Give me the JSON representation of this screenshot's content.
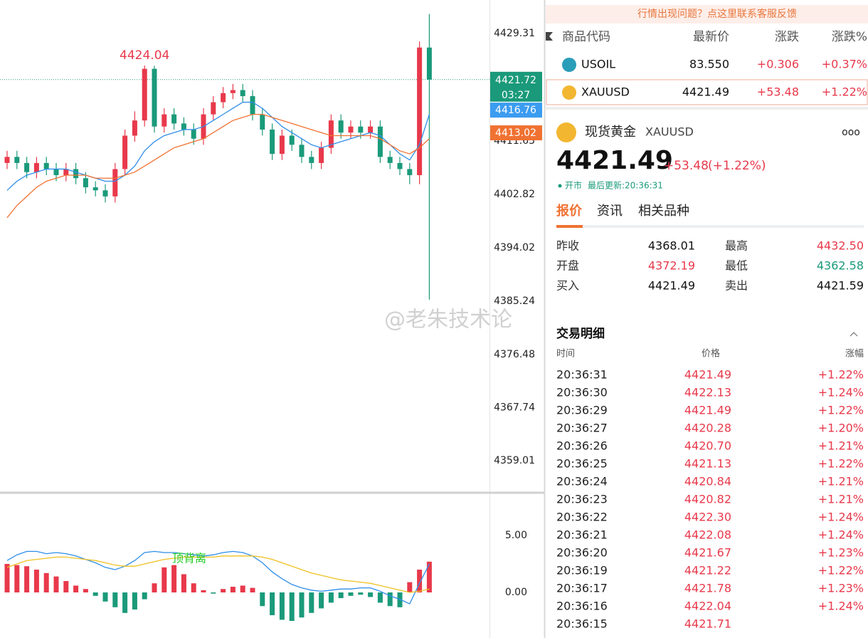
{
  "price_chart": {
    "type": "candlestick",
    "ylim": [
      4353.74,
      4434.82
    ],
    "yticks": [
      4429.31,
      4411.63,
      4402.82,
      4394.02,
      4385.24,
      4376.48,
      4367.74,
      4359.01
    ],
    "open": [
      4408,
      4409,
      4408,
      4406.5,
      4408,
      4407,
      4406,
      4407,
      4405.5,
      4404,
      4403.5,
      4402.5,
      4407,
      4412.5,
      4415,
      4423.5,
      4414,
      4416,
      4414.5,
      4413.5,
      4412,
      4416,
      4418,
      4419.5,
      4420,
      4419,
      4416,
      4413.5,
      4409.5,
      4412.5,
      4411,
      4409,
      4408,
      4410.5,
      4415,
      4413,
      4414,
      4413,
      4414,
      4409,
      4408,
      4407,
      4406,
      4427
    ],
    "high": [
      4410,
      4410,
      4409,
      4409,
      4409,
      4408,
      4408,
      4408,
      4406.5,
      4405,
      4404.5,
      4408,
      4413.5,
      4416.5,
      4424.04,
      4424,
      4417,
      4417,
      4415.5,
      4414.5,
      4417,
      4419,
      4420.5,
      4421,
      4421,
      4420,
      4417,
      4414.5,
      4413.5,
      4413.5,
      4412,
      4410,
      4411.5,
      4416,
      4416,
      4415,
      4415,
      4415,
      4415,
      4410,
      4409,
      4408,
      4428,
      4432.5
    ],
    "low": [
      4407,
      4407,
      4405.5,
      4405.5,
      4406,
      4405,
      4405,
      4404.5,
      4403,
      4402.5,
      4401.5,
      4401.5,
      4406,
      4411.5,
      4414,
      4413,
      4413,
      4413.5,
      4412.5,
      4411,
      4411,
      4415,
      4417,
      4418.5,
      4418,
      4415,
      4412.5,
      4408.5,
      4408.5,
      4410,
      4408,
      4407,
      4407,
      4409.5,
      4412,
      4412,
      4412,
      4412,
      4408,
      4407,
      4406,
      4404.5,
      4404.5,
      4385.5
    ],
    "close": [
      4409,
      4408,
      4406.5,
      4408,
      4407,
      4406,
      4407,
      4405.5,
      4404,
      4403.5,
      4402.5,
      4407,
      4412.5,
      4415,
      4423.5,
      4414,
      4416,
      4414.5,
      4413.5,
      4412,
      4416,
      4418,
      4419.5,
      4420,
      4419,
      4416,
      4413.5,
      4409.5,
      4412.5,
      4411,
      4409,
      4408,
      4410.5,
      4415,
      4413,
      4414,
      4413,
      4414,
      4409,
      4408,
      4407,
      4406,
      4427,
      4421.72
    ],
    "ma_fast": {
      "color": "#2f8ee8",
      "values": [
        4403.5,
        4405,
        4406,
        4406.5,
        4407,
        4407,
        4407,
        4406.5,
        4406,
        4405.5,
        4405,
        4405,
        4406,
        4407.5,
        4410,
        4411.5,
        4412.5,
        4413,
        4413.5,
        4413.5,
        4414,
        4415,
        4416,
        4417,
        4418,
        4418,
        4417,
        4415.5,
        4414,
        4413,
        4412,
        4411,
        4410.5,
        4411,
        4411.5,
        4412,
        4412.5,
        4413,
        4412.5,
        4411,
        4409.5,
        4408.5,
        4411,
        4416
      ]
    },
    "ma_slow": {
      "color": "#f07232",
      "values": [
        4399,
        4401,
        4402.5,
        4404,
        4405,
        4405.5,
        4406,
        4406,
        4406,
        4405.5,
        4405.5,
        4405.5,
        4406,
        4406.5,
        4407.5,
        4408.5,
        4409.5,
        4410.5,
        4411,
        4411.5,
        4412,
        4413,
        4414,
        4415,
        4415.5,
        4416,
        4416,
        4415.5,
        4415,
        4414.5,
        4414,
        4413.5,
        4413,
        4412.5,
        4412.5,
        4412.5,
        4412.5,
        4412.5,
        4412,
        4411,
        4410,
        4409.5,
        4410.5,
        4412
      ]
    },
    "up_color": "#e8394b",
    "down_color": "#1a9a7a",
    "high_annotation": {
      "index": 14,
      "label": "4424.04"
    },
    "price_tags": [
      {
        "value": 4421.72,
        "label": "4421.72",
        "timer": "03:27",
        "color": "#1a9a7a"
      },
      {
        "value": 4416.76,
        "label": "4416.76",
        "color": "#3b9cf0"
      },
      {
        "value": 4413.02,
        "label": "4413.02",
        "color": "#f07232"
      }
    ],
    "watermark": "@老朱技术论"
  },
  "macd_chart": {
    "type": "macd",
    "ylim": [
      -4,
      8.75
    ],
    "yticks": [
      {
        "value": 5,
        "label": "5.00"
      },
      {
        "value": 0,
        "label": "0.00"
      }
    ],
    "histogram": [
      2.5,
      2.4,
      2.3,
      2.0,
      1.7,
      1.4,
      1.0,
      0.6,
      0.3,
      -0.3,
      -0.8,
      -1.3,
      -1.8,
      -1.5,
      -0.6,
      0.8,
      2.2,
      2.4,
      1.6,
      0.8,
      0.2,
      -0.1,
      0.3,
      0.5,
      0.6,
      0.4,
      -1.2,
      -2.0,
      -2.4,
      -2.5,
      -2.2,
      -1.8,
      -1.4,
      -0.9,
      -0.5,
      -0.3,
      -0.2,
      -0.4,
      -0.9,
      -1.2,
      -1.3,
      0.9,
      2.0,
      2.7
    ],
    "dif": {
      "color": "#2f8ee8",
      "values": [
        2.8,
        3.3,
        3.6,
        3.6,
        3.4,
        3.5,
        3.4,
        3.2,
        2.9,
        2.6,
        2.2,
        2.0,
        2.3,
        2.8,
        3.5,
        3.6,
        3.5,
        3.5,
        3.4,
        3.3,
        3.2,
        3.3,
        3.5,
        3.6,
        3.5,
        3.2,
        2.6,
        1.8,
        1.2,
        0.7,
        0.4,
        0.2,
        0.1,
        0.2,
        0.3,
        0.3,
        0.4,
        0.4,
        0.1,
        -0.3,
        -0.6,
        -1.0,
        0.8,
        2.5
      ]
    },
    "dea": {
      "color": "#f0c020",
      "values": [
        2.2,
        2.5,
        2.8,
        2.9,
        3.0,
        3.1,
        3.1,
        3.0,
        2.9,
        2.8,
        2.6,
        2.4,
        2.3,
        2.3,
        2.5,
        2.7,
        2.9,
        3.0,
        3.1,
        3.1,
        3.1,
        3.1,
        3.2,
        3.2,
        3.2,
        3.2,
        3.1,
        2.9,
        2.6,
        2.3,
        2.0,
        1.7,
        1.5,
        1.3,
        1.1,
        1.0,
        0.9,
        0.8,
        0.6,
        0.4,
        0.2,
        0.0,
        0.1,
        0.3
      ]
    },
    "annotation": "顶背离"
  },
  "feedback_banner": "行情出现问题？点这里联系客服反馈",
  "watchlist": {
    "headers": [
      "商品代码",
      "最新价",
      "涨跌",
      "涨跌%"
    ],
    "rows": [
      [
        "USOIL",
        "83.550",
        "+0.306",
        "+0.37%"
      ],
      [
        "XAUUSD",
        "4421.49",
        "+53.48",
        "+1.22%"
      ]
    ]
  },
  "detail": {
    "name": "现货黄金",
    "symbol": "XAUUSD",
    "price": "4421.49",
    "change": "+53.48",
    "percent": "(+1.22%)",
    "status": "开市",
    "updated": "最后更新:20:36:31",
    "tabs": [
      "报价",
      "资讯",
      "相关品种"
    ],
    "stats": [
      [
        "昨收",
        "4368.01",
        "最高",
        "4432.50"
      ],
      [
        "开盘",
        "4372.19",
        "最低",
        "4362.58"
      ],
      [
        "买入",
        "4421.49",
        "卖出",
        "4421.59"
      ]
    ]
  },
  "trades": {
    "title": "交易明细",
    "headers": [
      "时间",
      "价格",
      "涨幅"
    ],
    "rows": [
      [
        "20:36:31",
        "4421.49",
        "+1.22%"
      ],
      [
        "20:36:30",
        "4422.13",
        "+1.24%"
      ],
      [
        "20:36:29",
        "4421.49",
        "+1.22%"
      ],
      [
        "20:36:27",
        "4420.28",
        "+1.20%"
      ],
      [
        "20:36:26",
        "4420.70",
        "+1.21%"
      ],
      [
        "20:36:25",
        "4421.13",
        "+1.22%"
      ],
      [
        "20:36:24",
        "4420.84",
        "+1.21%"
      ],
      [
        "20:36:23",
        "4420.82",
        "+1.21%"
      ],
      [
        "20:36:22",
        "4422.30",
        "+1.24%"
      ],
      [
        "20:36:21",
        "4422.08",
        "+1.24%"
      ],
      [
        "20:36:20",
        "4421.67",
        "+1.23%"
      ],
      [
        "20:36:19",
        "4421.22",
        "+1.22%"
      ],
      [
        "20:36:17",
        "4421.78",
        "+1.23%"
      ],
      [
        "20:36:16",
        "4422.04",
        "+1.24%"
      ],
      [
        "20:36:15",
        "4421.71"
      ]
    ]
  }
}
